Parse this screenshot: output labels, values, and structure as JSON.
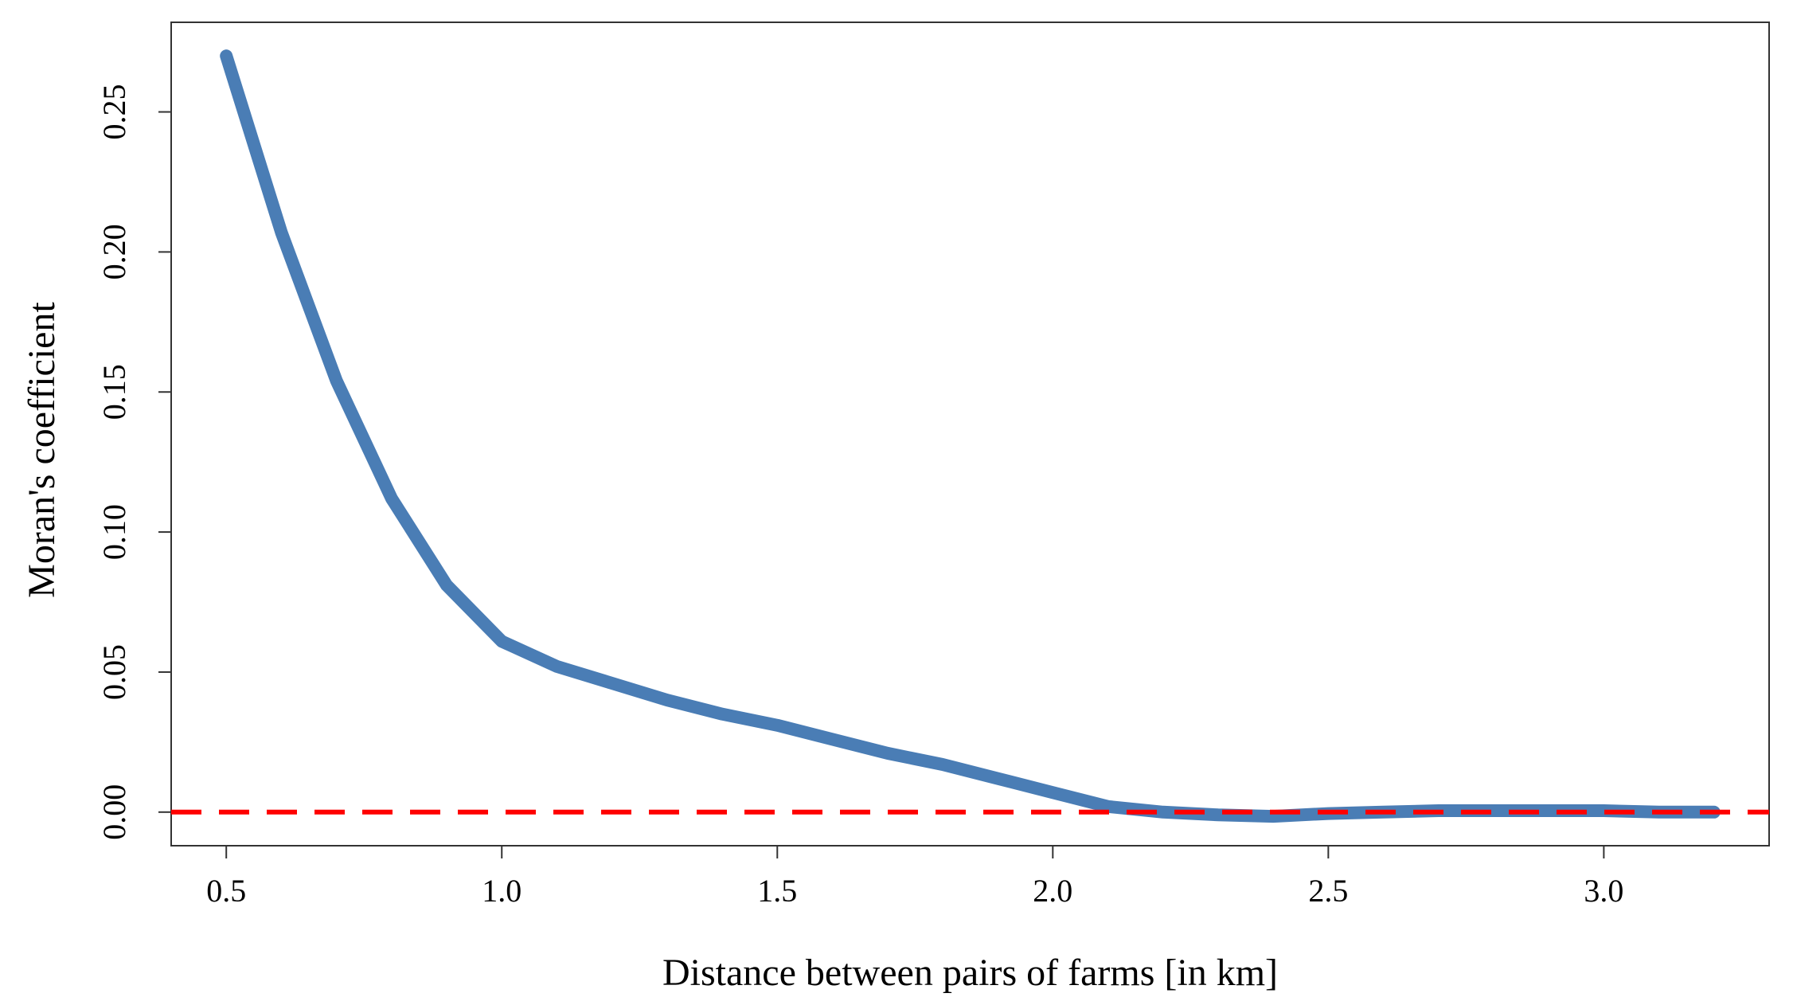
{
  "chart_data": {
    "type": "line",
    "title": "",
    "xlabel": "Distance between pairs of farms [in km]",
    "ylabel": "Moran's coefficient",
    "xlim": [
      0.4,
      3.3
    ],
    "ylim": [
      -0.012,
      0.282
    ],
    "x_ticks": [
      0.5,
      1.0,
      1.5,
      2.0,
      2.5,
      3.0
    ],
    "x_tick_labels": [
      "0.5",
      "1.0",
      "1.5",
      "2.0",
      "2.5",
      "3.0"
    ],
    "y_ticks": [
      0.0,
      0.05,
      0.1,
      0.15,
      0.2,
      0.25
    ],
    "y_tick_labels": [
      "0.00",
      "0.05",
      "0.10",
      "0.15",
      "0.20",
      "0.25"
    ],
    "grid": false,
    "series": [
      {
        "name": "Moran's coefficient",
        "color": "#4a7db5",
        "style": "solid",
        "x": [
          0.5,
          0.6,
          0.7,
          0.8,
          0.9,
          1.0,
          1.1,
          1.2,
          1.3,
          1.4,
          1.5,
          1.6,
          1.7,
          1.8,
          1.9,
          2.0,
          2.1,
          2.2,
          2.3,
          2.4,
          2.5,
          2.6,
          2.7,
          2.8,
          2.9,
          3.0,
          3.1,
          3.2
        ],
        "values": [
          0.27,
          0.207,
          0.154,
          0.112,
          0.081,
          0.061,
          0.052,
          0.046,
          0.04,
          0.035,
          0.031,
          0.026,
          0.021,
          0.017,
          0.012,
          0.007,
          0.002,
          0.0,
          -0.001,
          -0.0015,
          -0.0005,
          0.0,
          0.0005,
          0.0005,
          0.0005,
          0.0005,
          0.0,
          0.0
        ]
      }
    ],
    "reference_line": {
      "name": "zero line",
      "y": 0.0,
      "color": "#ff0000",
      "style": "dashed"
    }
  }
}
